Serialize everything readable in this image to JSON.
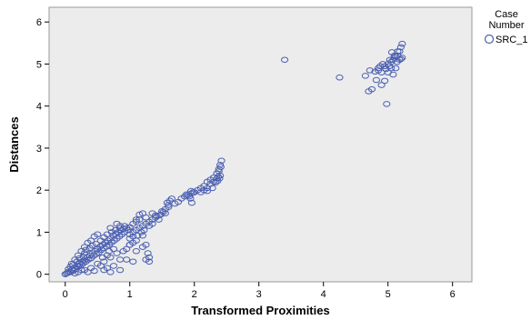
{
  "chart_data": {
    "type": "scatter",
    "xlabel": "Transformed Proximities",
    "ylabel": "Distances",
    "xlim": [
      -0.25,
      6.3
    ],
    "ylim": [
      -0.18,
      6.35
    ],
    "xticks": [
      0,
      1,
      2,
      3,
      4,
      5,
      6
    ],
    "yticks": [
      0,
      1,
      2,
      3,
      4,
      5,
      6
    ],
    "grid": false,
    "background": "#ececec",
    "marker_color": "#4a5fb0",
    "legend": {
      "title_line1": "Case",
      "title_line2": "Number",
      "placement": "right",
      "entries": [
        "SRC_1"
      ]
    },
    "series": [
      {
        "name": "SRC_1",
        "points": [
          [
            0.0,
            0.0
          ],
          [
            0.02,
            0.02
          ],
          [
            0.04,
            0.03
          ],
          [
            0.05,
            0.06
          ],
          [
            0.08,
            0.05
          ],
          [
            0.1,
            0.1
          ],
          [
            0.12,
            0.08
          ],
          [
            0.14,
            0.15
          ],
          [
            0.16,
            0.12
          ],
          [
            0.18,
            0.2
          ],
          [
            0.2,
            0.18
          ],
          [
            0.22,
            0.25
          ],
          [
            0.24,
            0.22
          ],
          [
            0.26,
            0.3
          ],
          [
            0.28,
            0.26
          ],
          [
            0.3,
            0.34
          ],
          [
            0.32,
            0.3
          ],
          [
            0.34,
            0.4
          ],
          [
            0.36,
            0.35
          ],
          [
            0.38,
            0.45
          ],
          [
            0.4,
            0.38
          ],
          [
            0.42,
            0.5
          ],
          [
            0.44,
            0.44
          ],
          [
            0.46,
            0.55
          ],
          [
            0.48,
            0.48
          ],
          [
            0.5,
            0.6
          ],
          [
            0.52,
            0.52
          ],
          [
            0.54,
            0.66
          ],
          [
            0.56,
            0.58
          ],
          [
            0.58,
            0.7
          ],
          [
            0.6,
            0.62
          ],
          [
            0.62,
            0.75
          ],
          [
            0.64,
            0.66
          ],
          [
            0.66,
            0.8
          ],
          [
            0.68,
            0.7
          ],
          [
            0.7,
            0.85
          ],
          [
            0.72,
            0.76
          ],
          [
            0.74,
            0.92
          ],
          [
            0.76,
            0.8
          ],
          [
            0.78,
            0.96
          ],
          [
            0.8,
            0.85
          ],
          [
            0.82,
            1.0
          ],
          [
            0.84,
            0.9
          ],
          [
            0.86,
            1.05
          ],
          [
            0.88,
            0.95
          ],
          [
            0.9,
            1.08
          ],
          [
            0.92,
            1.0
          ],
          [
            0.95,
            1.1
          ],
          [
            0.98,
            1.05
          ],
          [
            1.0,
            1.12
          ],
          [
            0.1,
            0.25
          ],
          [
            0.15,
            0.35
          ],
          [
            0.2,
            0.45
          ],
          [
            0.25,
            0.55
          ],
          [
            0.3,
            0.65
          ],
          [
            0.35,
            0.75
          ],
          [
            0.4,
            0.8
          ],
          [
            0.3,
            0.5
          ],
          [
            0.45,
            0.9
          ],
          [
            0.5,
            0.95
          ],
          [
            0.2,
            0.05
          ],
          [
            0.3,
            0.1
          ],
          [
            0.4,
            0.15
          ],
          [
            0.5,
            0.25
          ],
          [
            0.6,
            0.3
          ],
          [
            0.7,
            0.4
          ],
          [
            0.8,
            0.5
          ],
          [
            0.9,
            0.55
          ],
          [
            1.0,
            0.7
          ],
          [
            0.55,
            0.2
          ],
          [
            0.35,
            0.05
          ],
          [
            0.45,
            0.08
          ],
          [
            0.65,
            0.15
          ],
          [
            0.75,
            0.2
          ],
          [
            0.85,
            0.35
          ],
          [
            0.25,
            0.1
          ],
          [
            0.15,
            0.02
          ],
          [
            0.6,
            0.1
          ],
          [
            0.7,
            0.05
          ],
          [
            0.65,
            0.45
          ],
          [
            0.05,
            0.12
          ],
          [
            0.08,
            0.18
          ],
          [
            0.12,
            0.22
          ],
          [
            0.18,
            0.3
          ],
          [
            0.22,
            0.38
          ],
          [
            0.28,
            0.42
          ],
          [
            0.32,
            0.58
          ],
          [
            0.38,
            0.62
          ],
          [
            0.42,
            0.68
          ],
          [
            0.48,
            0.72
          ],
          [
            0.55,
            0.8
          ],
          [
            0.6,
            0.88
          ],
          [
            0.65,
            0.95
          ],
          [
            0.72,
            1.0
          ],
          [
            0.78,
            1.05
          ],
          [
            0.85,
            1.1
          ],
          [
            0.92,
            1.15
          ],
          [
            0.58,
            0.4
          ],
          [
            0.68,
            0.55
          ],
          [
            0.75,
            0.6
          ],
          [
            1.0,
            0.95
          ],
          [
            1.05,
            1.0
          ],
          [
            1.1,
            1.05
          ],
          [
            1.15,
            1.1
          ],
          [
            1.2,
            1.15
          ],
          [
            1.25,
            1.2
          ],
          [
            1.3,
            1.25
          ],
          [
            1.35,
            1.3
          ],
          [
            1.4,
            1.35
          ],
          [
            1.45,
            1.4
          ],
          [
            1.05,
            1.2
          ],
          [
            1.1,
            1.25
          ],
          [
            1.15,
            1.3
          ],
          [
            1.2,
            1.45
          ],
          [
            1.25,
            1.35
          ],
          [
            1.0,
            0.85
          ],
          [
            1.05,
            0.9
          ],
          [
            1.12,
            0.92
          ],
          [
            1.18,
            1.0
          ],
          [
            1.22,
            1.05
          ],
          [
            1.3,
            1.15
          ],
          [
            1.35,
            1.2
          ],
          [
            1.5,
            1.5
          ],
          [
            1.55,
            1.55
          ],
          [
            1.6,
            1.6
          ],
          [
            1.58,
            1.7
          ],
          [
            1.62,
            1.75
          ],
          [
            1.65,
            1.8
          ],
          [
            1.55,
            1.45
          ],
          [
            1.48,
            1.42
          ],
          [
            1.45,
            1.3
          ],
          [
            1.6,
            1.65
          ],
          [
            1.52,
            1.48
          ],
          [
            1.42,
            1.38
          ],
          [
            1.15,
            1.42
          ],
          [
            1.1,
            1.3
          ],
          [
            0.85,
            1.15
          ],
          [
            0.8,
            1.2
          ],
          [
            0.7,
            1.1
          ],
          [
            1.05,
            0.75
          ],
          [
            1.0,
            0.7
          ],
          [
            0.95,
            0.6
          ],
          [
            1.1,
            0.8
          ],
          [
            1.25,
            0.7
          ],
          [
            1.2,
            0.65
          ],
          [
            1.3,
            0.4
          ],
          [
            1.25,
            0.35
          ],
          [
            1.3,
            0.3
          ],
          [
            1.28,
            0.5
          ],
          [
            1.1,
            0.55
          ],
          [
            1.05,
            0.3
          ],
          [
            0.95,
            0.35
          ],
          [
            0.85,
            0.1
          ],
          [
            1.2,
            0.92
          ],
          [
            1.35,
            1.45
          ],
          [
            1.4,
            1.4
          ],
          [
            1.7,
            1.68
          ],
          [
            1.75,
            1.72
          ],
          [
            1.8,
            1.8
          ],
          [
            1.85,
            1.85
          ],
          [
            1.9,
            1.88
          ],
          [
            1.95,
            1.92
          ],
          [
            1.98,
            1.95
          ],
          [
            1.88,
            1.9
          ],
          [
            1.92,
            1.85
          ],
          [
            1.94,
            1.8
          ],
          [
            1.96,
            1.7
          ],
          [
            2.0,
            1.95
          ],
          [
            1.95,
            1.98
          ],
          [
            2.05,
            2.0
          ],
          [
            2.1,
            2.05
          ],
          [
            2.15,
            2.1
          ],
          [
            2.2,
            2.2
          ],
          [
            2.25,
            2.25
          ],
          [
            2.3,
            2.3
          ],
          [
            2.35,
            2.4
          ],
          [
            2.38,
            2.5
          ],
          [
            2.4,
            2.6
          ],
          [
            2.42,
            2.7
          ],
          [
            2.4,
            2.35
          ],
          [
            2.38,
            2.45
          ],
          [
            2.35,
            2.28
          ],
          [
            2.3,
            2.2
          ],
          [
            2.25,
            2.15
          ],
          [
            2.2,
            2.05
          ],
          [
            2.15,
            2.0
          ],
          [
            2.1,
            1.95
          ],
          [
            2.2,
            1.98
          ],
          [
            2.28,
            2.05
          ],
          [
            2.33,
            2.18
          ],
          [
            2.37,
            2.32
          ],
          [
            2.41,
            2.55
          ],
          [
            2.39,
            2.28
          ],
          [
            2.36,
            2.22
          ],
          [
            3.4,
            5.1
          ],
          [
            4.25,
            4.68
          ],
          [
            4.65,
            4.72
          ],
          [
            4.7,
            4.35
          ],
          [
            4.75,
            4.4
          ],
          [
            4.8,
            4.82
          ],
          [
            4.85,
            4.85
          ],
          [
            4.9,
            4.8
          ],
          [
            4.95,
            4.6
          ],
          [
            4.98,
            4.05
          ],
          [
            4.9,
            4.5
          ],
          [
            4.85,
            4.9
          ],
          [
            4.95,
            4.95
          ],
          [
            5.0,
            5.0
          ],
          [
            5.02,
            4.95
          ],
          [
            5.05,
            5.05
          ],
          [
            5.08,
            5.1
          ],
          [
            5.1,
            5.15
          ],
          [
            5.12,
            5.18
          ],
          [
            5.15,
            5.2
          ],
          [
            5.18,
            5.3
          ],
          [
            5.2,
            5.4
          ],
          [
            5.22,
            5.48
          ],
          [
            5.15,
            5.3
          ],
          [
            5.1,
            5.2
          ],
          [
            5.05,
            4.9
          ],
          [
            5.0,
            4.8
          ],
          [
            5.08,
            4.75
          ],
          [
            5.12,
            4.9
          ],
          [
            5.18,
            5.1
          ],
          [
            5.2,
            5.12
          ],
          [
            5.22,
            5.15
          ],
          [
            4.92,
            5.0
          ],
          [
            4.88,
            4.95
          ],
          [
            5.03,
            5.1
          ],
          [
            4.97,
            4.88
          ],
          [
            5.14,
            5.05
          ],
          [
            4.82,
            4.62
          ],
          [
            4.72,
            4.85
          ],
          [
            5.06,
            5.28
          ]
        ]
      }
    ]
  }
}
